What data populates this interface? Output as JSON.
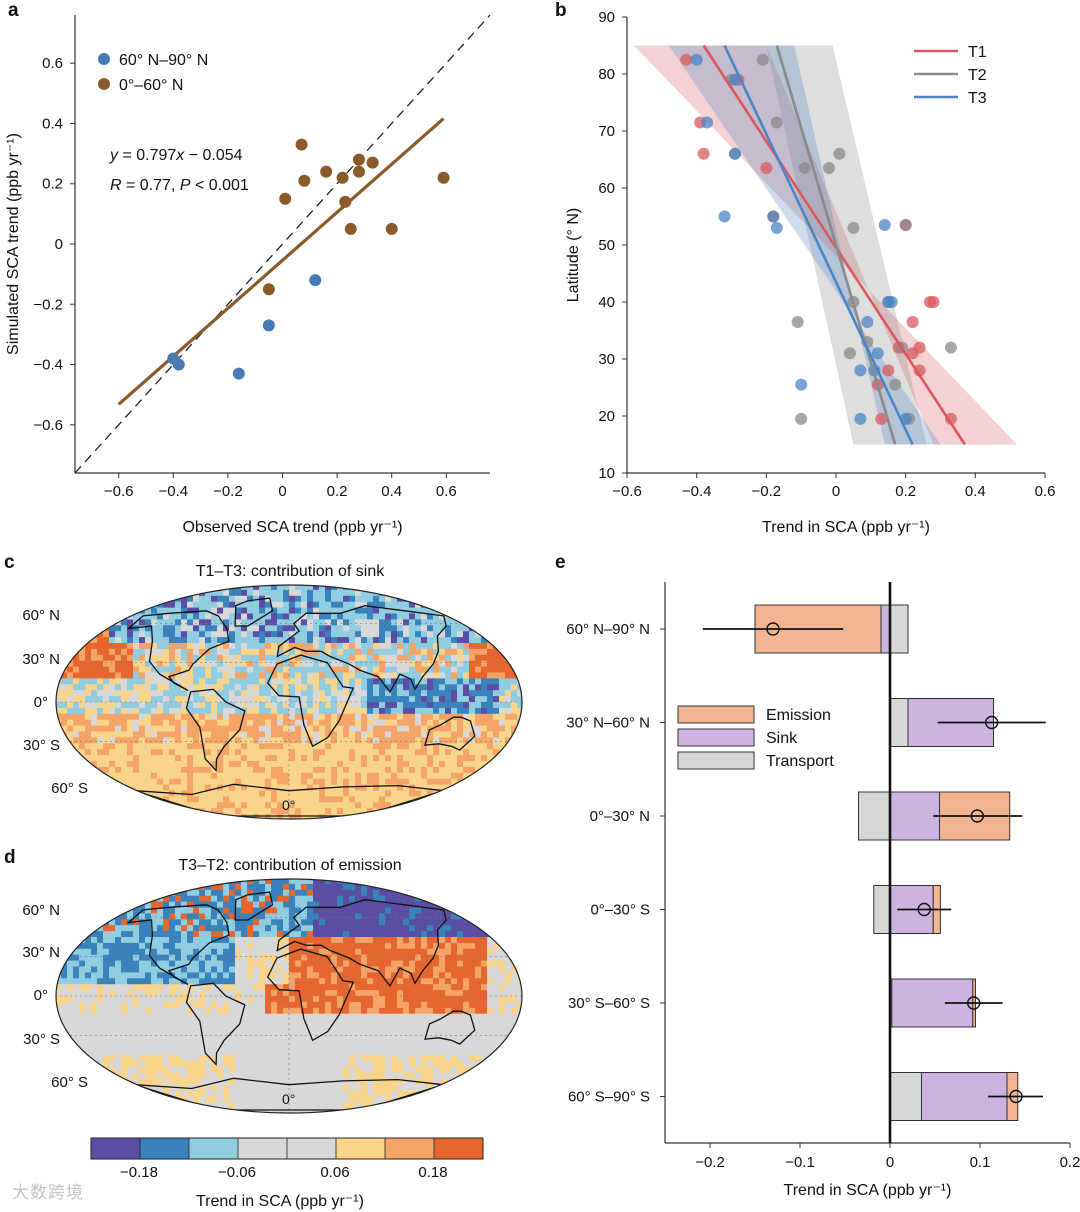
{
  "panels": {
    "a": "a",
    "b": "b",
    "c": "c",
    "d": "d",
    "e": "e"
  },
  "watermark": "大数跨境",
  "chart_data": [
    {
      "id": "a",
      "type": "scatter",
      "xlabel": "Observed SCA trend (ppb yr⁻¹)",
      "ylabel": "Simulated SCA trend (ppb yr⁻¹)",
      "xlim": [
        -0.76,
        0.76
      ],
      "ylim": [
        -0.76,
        0.76
      ],
      "xticks": [
        "−0.6",
        "−0.4",
        "−0.2",
        "0",
        "0.2",
        "0.4",
        "0.6"
      ],
      "xtick_values": [
        -0.6,
        -0.4,
        -0.2,
        0,
        0.2,
        0.4,
        0.6
      ],
      "yticks": [
        "0.6",
        "0.4",
        "0.2",
        "0",
        "−0.2",
        "−0.4",
        "−0.6"
      ],
      "ytick_values": [
        0.6,
        0.4,
        0.2,
        0,
        -0.2,
        -0.4,
        -0.6
      ],
      "equation": "y = 0.797x − 0.054",
      "stats": "R = 0.77, P < 0.001",
      "fit_line": {
        "x": [
          -0.6,
          0.59
        ],
        "slope": 0.797,
        "intercept": -0.054
      },
      "one_to_one": true,
      "series": [
        {
          "name": "60° N–90° N",
          "color": "#4a7ab5",
          "points": [
            [
              -0.4,
              -0.38
            ],
            [
              -0.38,
              -0.4
            ],
            [
              -0.16,
              -0.43
            ],
            [
              -0.05,
              -0.27
            ],
            [
              0.12,
              -0.12
            ]
          ]
        },
        {
          "name": "0°–60° N",
          "color": "#8a5a2b",
          "points": [
            [
              -0.05,
              -0.15
            ],
            [
              0.01,
              0.15
            ],
            [
              0.07,
              0.33
            ],
            [
              0.08,
              0.21
            ],
            [
              0.16,
              0.24
            ],
            [
              0.22,
              0.22
            ],
            [
              0.23,
              0.14
            ],
            [
              0.25,
              0.05
            ],
            [
              0.28,
              0.28
            ],
            [
              0.28,
              0.24
            ],
            [
              0.33,
              0.27
            ],
            [
              0.4,
              0.05
            ],
            [
              0.59,
              0.22
            ]
          ]
        }
      ]
    },
    {
      "id": "b",
      "type": "scatter",
      "xlabel": "Trend in SCA (ppb yr⁻¹)",
      "ylabel": "Latitude (° N)",
      "xlim": [
        -0.6,
        0.6
      ],
      "ylim": [
        10,
        90
      ],
      "xticks": [
        "−0.6",
        "−0.4",
        "−0.2",
        "0",
        "0.2",
        "0.4",
        "0.6"
      ],
      "xtick_values": [
        -0.6,
        -0.4,
        -0.2,
        0,
        0.2,
        0.4,
        0.6
      ],
      "yticks": [
        "10",
        "20",
        "30",
        "40",
        "50",
        "60",
        "70",
        "80",
        "90"
      ],
      "ytick_values": [
        10,
        20,
        30,
        40,
        50,
        60,
        70,
        80,
        90
      ],
      "legend_position": "top-right",
      "series": [
        {
          "name": "T1",
          "color": "#d9585e",
          "line": [
            [
              -0.38,
              85
            ],
            [
              0.37,
              15
            ]
          ],
          "band": [
            [
              -0.58,
              85
            ],
            [
              0.52,
              15
            ],
            [
              0.28,
              15
            ],
            [
              -0.2,
              85
            ]
          ],
          "points": [
            [
              -0.43,
              82.5
            ],
            [
              -0.28,
              79
            ],
            [
              -0.39,
              71.5
            ],
            [
              -0.38,
              66
            ],
            [
              -0.2,
              63.5
            ],
            [
              -0.18,
              55
            ],
            [
              0.2,
              53.5
            ],
            [
              0.27,
              40
            ],
            [
              0.28,
              40
            ],
            [
              0.22,
              36.5
            ],
            [
              0.18,
              32
            ],
            [
              0.24,
              32
            ],
            [
              0.22,
              31
            ],
            [
              0.24,
              28
            ],
            [
              0.12,
              25.5
            ],
            [
              0.15,
              28
            ],
            [
              0.13,
              19.5
            ],
            [
              0.33,
              19.5
            ]
          ]
        },
        {
          "name": "T2",
          "color": "#8a8a8a",
          "line": [
            [
              -0.17,
              85
            ],
            [
              0.17,
              15
            ]
          ],
          "band": [
            [
              -0.2,
              85
            ],
            [
              -0.01,
              85
            ],
            [
              0.26,
              15
            ],
            [
              0.05,
              15
            ]
          ],
          "points": [
            [
              -0.21,
              82.5
            ],
            [
              -0.3,
              79
            ],
            [
              -0.17,
              71.5
            ],
            [
              -0.29,
              66
            ],
            [
              0.01,
              66
            ],
            [
              -0.02,
              63.5
            ],
            [
              -0.09,
              63.5
            ],
            [
              0.05,
              53
            ],
            [
              0.2,
              53.5
            ],
            [
              0.05,
              40
            ],
            [
              -0.11,
              36.5
            ],
            [
              0.04,
              31
            ],
            [
              0.09,
              33
            ],
            [
              0.15,
              40
            ],
            [
              0.19,
              32
            ],
            [
              0.17,
              25.5
            ],
            [
              0.21,
              19.5
            ],
            [
              -0.1,
              19.5
            ],
            [
              0.33,
              32
            ]
          ]
        },
        {
          "name": "T3",
          "color": "#4a86c6",
          "line": [
            [
              -0.32,
              85
            ],
            [
              0.22,
              15
            ]
          ],
          "band": [
            [
              -0.48,
              85
            ],
            [
              0.3,
              15
            ],
            [
              0.14,
              15
            ],
            [
              -0.12,
              85
            ]
          ],
          "points": [
            [
              -0.4,
              82.5
            ],
            [
              -0.29,
              79
            ],
            [
              -0.37,
              71.5
            ],
            [
              -0.29,
              66
            ],
            [
              -0.18,
              55
            ],
            [
              -0.32,
              55
            ],
            [
              -0.17,
              53
            ],
            [
              0.14,
              53.5
            ],
            [
              0.15,
              40
            ],
            [
              0.16,
              40
            ],
            [
              0.09,
              36.5
            ],
            [
              0.12,
              31
            ],
            [
              0.07,
              28
            ],
            [
              0.11,
              28
            ],
            [
              -0.1,
              25.5
            ],
            [
              0.07,
              19.5
            ],
            [
              0.2,
              19.5
            ]
          ]
        }
      ]
    },
    {
      "id": "c",
      "type": "heatmap",
      "title": "T1–T3: contribution of sink",
      "lat_labels": [
        "60° N",
        "30° N",
        "0°",
        "30° S",
        "60° S"
      ],
      "center_label": "0°"
    },
    {
      "id": "d",
      "type": "heatmap",
      "title": "T3–T2: contribution of emission",
      "lat_labels": [
        "60° N",
        "30° N",
        "0°",
        "30° S",
        "60° S"
      ],
      "center_label": "0°",
      "colorbar": {
        "xlabel": "Trend in SCA (ppb yr⁻¹)",
        "ticks": [
          "−0.18",
          "−0.06",
          "0.06",
          "0.18"
        ],
        "colors": [
          "#5a4ea4",
          "#3a82bb",
          "#91cde0",
          "#d8d8d8",
          "#d8d8d8",
          "#f8d58b",
          "#f4a466",
          "#e5672f"
        ]
      }
    },
    {
      "id": "e",
      "type": "bar",
      "orientation": "horizontal",
      "stacked": true,
      "xlabel": "Trend in SCA (ppb yr⁻¹)",
      "xlim": [
        -0.25,
        0.2
      ],
      "xticks": [
        "−0.2",
        "−0.1",
        "0",
        "0.1",
        "0.2"
      ],
      "xtick_values": [
        -0.2,
        -0.1,
        0,
        0.1,
        0.2
      ],
      "categories": [
        "60° N–90° N",
        "30° N–60° N",
        "0°–30° N",
        "0°–30° S",
        "30° S–60° S",
        "60° S–90° S"
      ],
      "series": [
        {
          "name": "Emission",
          "color": "#f2b592"
        },
        {
          "name": "Sink",
          "color": "#cdb4e0"
        },
        {
          "name": "Transport",
          "color": "#d7d7d7"
        }
      ],
      "segments": [
        [
          {
            "series": "Transport",
            "from": 0,
            "to": 0.02
          },
          {
            "series": "Sink",
            "from": -0.01,
            "to": 0
          },
          {
            "series": "Emission",
            "from": -0.15,
            "to": -0.01
          }
        ],
        [
          {
            "series": "Transport",
            "from": 0,
            "to": 0.02
          },
          {
            "series": "Sink",
            "from": 0.02,
            "to": 0.115
          }
        ],
        [
          {
            "series": "Transport",
            "from": -0.035,
            "to": 0
          },
          {
            "series": "Sink",
            "from": 0,
            "to": 0.055
          },
          {
            "series": "Emission",
            "from": 0.055,
            "to": 0.133
          }
        ],
        [
          {
            "series": "Transport",
            "from": -0.018,
            "to": 0
          },
          {
            "series": "Sink",
            "from": 0,
            "to": 0.048
          },
          {
            "series": "Emission",
            "from": 0.048,
            "to": 0.056
          }
        ],
        [
          {
            "series": "Sink",
            "from": 0.002,
            "to": 0.092
          },
          {
            "series": "Emission",
            "from": 0.092,
            "to": 0.095
          }
        ],
        [
          {
            "series": "Transport",
            "from": 0,
            "to": 0.035
          },
          {
            "series": "Sink",
            "from": 0.035,
            "to": 0.13
          },
          {
            "series": "Emission",
            "from": 0.13,
            "to": 0.142
          }
        ]
      ],
      "net": [
        -0.13,
        0.113,
        0.097,
        0.038,
        0.093,
        0.14
      ],
      "error": [
        [
          -0.208,
          -0.052
        ],
        [
          0.053,
          0.173
        ],
        [
          0.048,
          0.147
        ],
        [
          0.008,
          0.068
        ],
        [
          0.061,
          0.125
        ],
        [
          0.109,
          0.17
        ]
      ]
    }
  ]
}
